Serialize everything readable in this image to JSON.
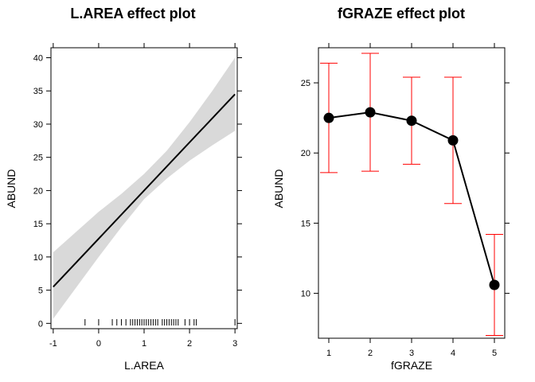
{
  "chart_data": [
    {
      "type": "line",
      "title": "L.AREA effect plot",
      "xlabel": "L.AREA",
      "ylabel": "ABUND",
      "xlim": [
        -1.05,
        3.05
      ],
      "ylim": [
        -0.8,
        41.5
      ],
      "xticks": [
        "-1",
        "0",
        "1",
        "2",
        "3"
      ],
      "yticks": [
        "0",
        "5",
        "10",
        "15",
        "20",
        "25",
        "30",
        "35",
        "40"
      ],
      "fit": {
        "x": [
          -1,
          3
        ],
        "y": [
          5.5,
          34.5
        ]
      },
      "band": {
        "x": [
          -1,
          0,
          0.5,
          1,
          1.5,
          2,
          2.5,
          3
        ],
        "lower": [
          0.7,
          10.0,
          14.5,
          18.7,
          21.8,
          24.5,
          26.8,
          29.0
        ],
        "upper": [
          10.7,
          16.8,
          19.5,
          22.5,
          26.0,
          30.3,
          35.0,
          40.0
        ]
      },
      "rug": [
        -0.3,
        0.0,
        0.3,
        0.4,
        0.5,
        0.6,
        0.7,
        0.75,
        0.8,
        0.85,
        0.9,
        0.95,
        1.0,
        1.05,
        1.1,
        1.15,
        1.2,
        1.25,
        1.3,
        1.4,
        1.45,
        1.5,
        1.55,
        1.6,
        1.65,
        1.7,
        1.75,
        1.9,
        2.0,
        2.1,
        2.15,
        3.0
      ],
      "colors": {
        "line": "#000000",
        "band": "#d9d9d9"
      },
      "grid": false
    },
    {
      "type": "line",
      "title": "fGRAZE effect plot",
      "xlabel": "fGRAZE",
      "ylabel": "ABUND",
      "xlim": [
        0.75,
        5.25
      ],
      "ylim": [
        6.8,
        27.5
      ],
      "xticks": [
        "1",
        "2",
        "3",
        "4",
        "5"
      ],
      "yticks": [
        "10",
        "15",
        "20",
        "25"
      ],
      "categories": [
        "1",
        "2",
        "3",
        "4",
        "5"
      ],
      "values": [
        22.5,
        22.9,
        22.3,
        20.9,
        10.6
      ],
      "lower": [
        18.6,
        18.7,
        19.2,
        16.4,
        7.0
      ],
      "upper": [
        26.4,
        27.1,
        25.4,
        25.4,
        14.2
      ],
      "colors": {
        "line": "#000000",
        "points": "#000000",
        "error_bars": "#ff0000"
      },
      "grid": false
    }
  ]
}
